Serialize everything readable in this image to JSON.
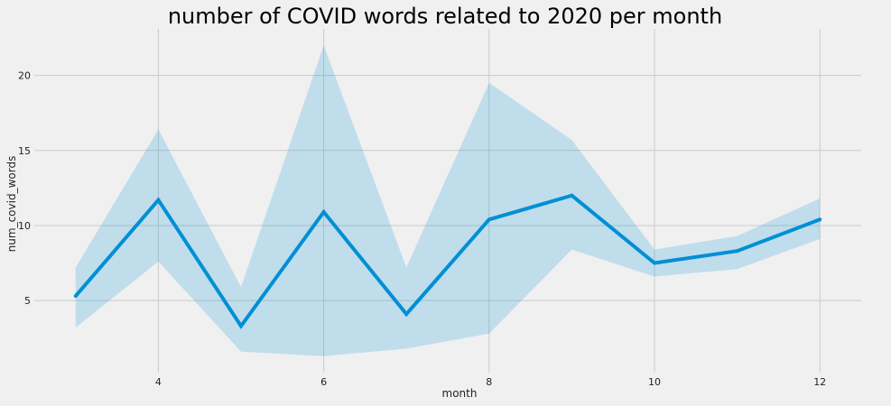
{
  "chart_data": {
    "type": "line",
    "title": "number of COVID words related to 2020 per month",
    "xlabel": "month",
    "ylabel": "num_covid_words",
    "x": [
      3,
      4,
      5,
      6,
      7,
      8,
      9,
      10,
      11,
      12
    ],
    "series": [
      {
        "values": [
          5.3,
          11.7,
          3.3,
          10.9,
          4.1,
          10.4,
          12.0,
          7.5,
          8.3,
          10.4
        ],
        "ci_upper": [
          7.2,
          16.4,
          5.9,
          22.0,
          7.2,
          19.5,
          15.7,
          8.4,
          9.3,
          11.8
        ],
        "ci_lower": [
          3.2,
          7.6,
          1.6,
          1.3,
          1.8,
          2.8,
          8.4,
          6.6,
          7.1,
          9.1
        ]
      }
    ],
    "xticks": [
      4,
      6,
      8,
      10,
      12
    ],
    "yticks": [
      5,
      10,
      15,
      20
    ],
    "xlim": [
      2.5,
      12.5
    ],
    "ylim": [
      0.2,
      23.1
    ],
    "grid": true,
    "colors": {
      "line": "#008fd5",
      "band": "#008fd5",
      "background": "#f0f0f0",
      "grid": "#cbcbcb"
    }
  }
}
